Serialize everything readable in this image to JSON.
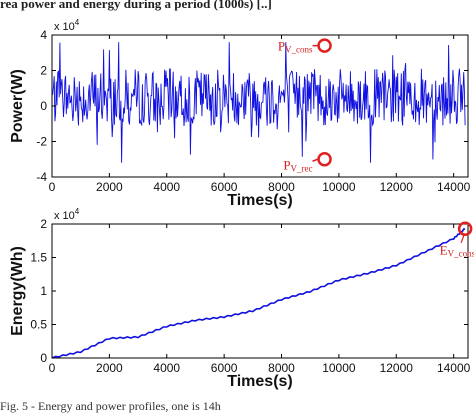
{
  "page": {
    "top_text": "rea power and energy during a period (1000s) [..]",
    "caption": "Fig. 5 - Energy and power profiles, one is 14h"
  },
  "colors": {
    "series": "#1010e0",
    "annotation": "#e02020"
  },
  "chart_data": [
    {
      "type": "line",
      "title": "",
      "xlabel": "Times(s)",
      "ylabel": "Power(W)",
      "y_multiplier": "x 10^4",
      "xlim": [
        0,
        14500
      ],
      "ylim": [
        -40000,
        40000
      ],
      "xticks": [
        0,
        2000,
        4000,
        6000,
        8000,
        10000,
        12000,
        14000
      ],
      "yticks": [
        -4,
        -2,
        0,
        2,
        4
      ],
      "grid": false,
      "series": [
        {
          "x_start": 0,
          "x_end": 14400,
          "y_mean": 5000,
          "y_min": -32000,
          "y_max": 36000,
          "sampling_interval_s": 25
        }
      ],
      "annotations": [
        {
          "label": "P",
          "sub": "V_cons",
          "x": 9500,
          "y": 34000
        },
        {
          "label": "P",
          "sub": "V_rec",
          "x": 9500,
          "y": -30000
        }
      ]
    },
    {
      "type": "line",
      "title": "",
      "xlabel": "Times(s)",
      "ylabel": "Energy(Wh)",
      "y_multiplier": "x 10^4",
      "xlim": [
        0,
        14500
      ],
      "ylim": [
        0,
        20000
      ],
      "xticks": [
        0,
        2000,
        4000,
        6000,
        8000,
        10000,
        12000,
        14000
      ],
      "yticks": [
        0,
        0.5,
        1,
        1.5,
        2
      ],
      "grid": false,
      "series": [
        {
          "x": [
            0,
            1000,
            2000,
            3000,
            4000,
            5000,
            6000,
            7000,
            8000,
            9000,
            10000,
            11000,
            12000,
            13000,
            14000,
            14400
          ],
          "y": [
            0,
            900,
            2900,
            3100,
            4700,
            5600,
            6100,
            7000,
            8700,
            9900,
            11600,
            12600,
            13800,
            15800,
            17800,
            19300
          ]
        }
      ],
      "annotations": [
        {
          "label": "E",
          "sub": "V_cons",
          "x": 14400,
          "y": 19300
        }
      ]
    }
  ]
}
